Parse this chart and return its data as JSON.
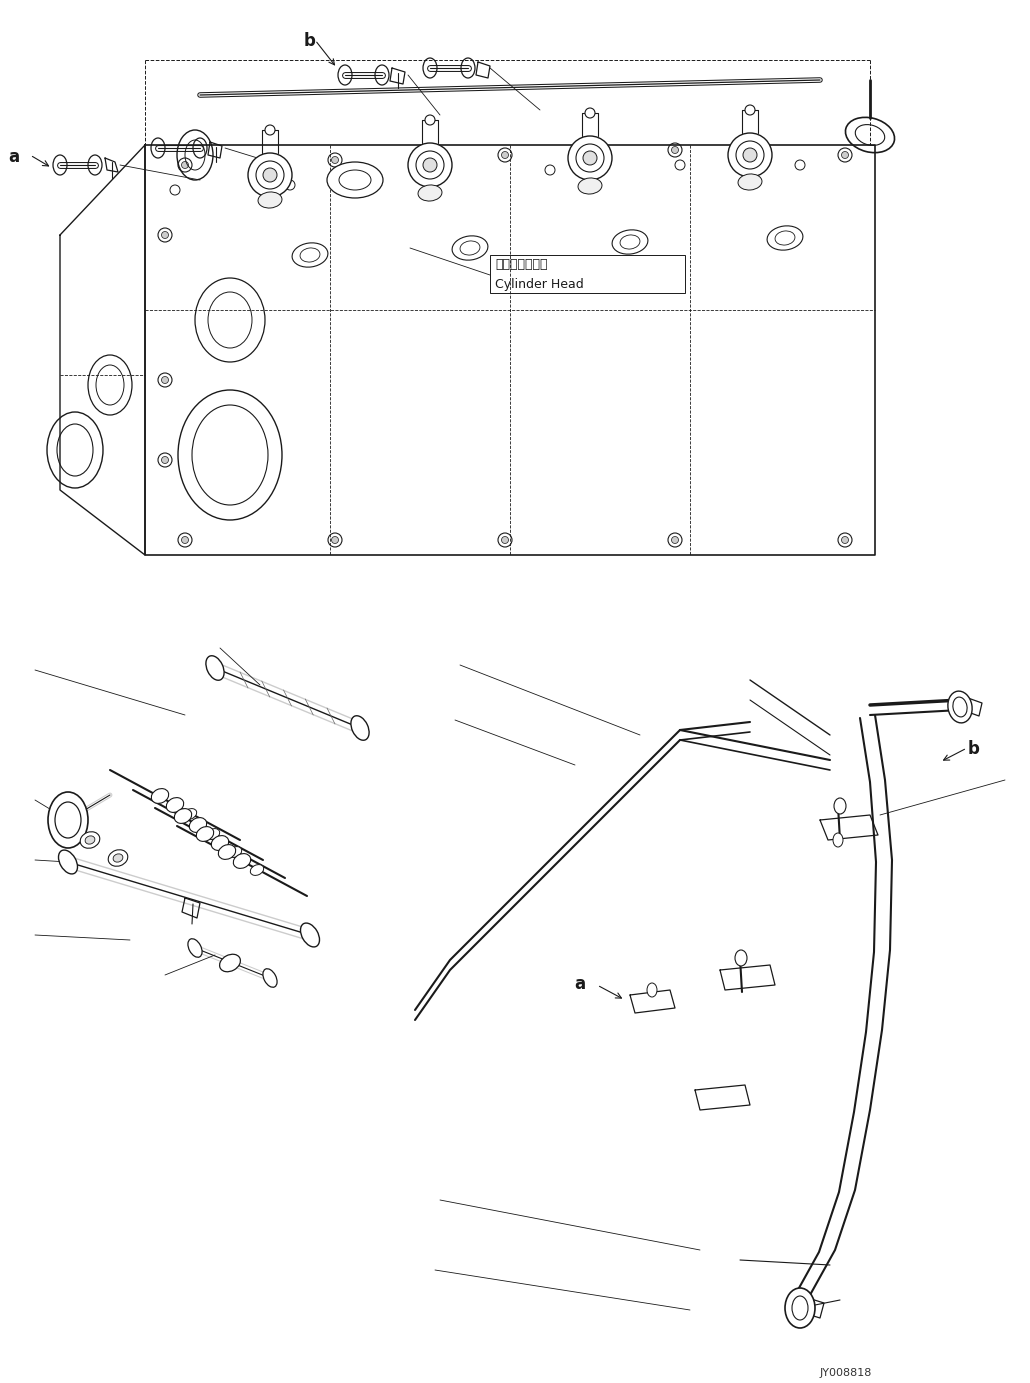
{
  "bg_color": "#ffffff",
  "line_color": "#1a1a1a",
  "cylinder_head_jp": "シリンダヘッド",
  "cylinder_head_en": "Cylinder Head",
  "part_number": "JY008818",
  "fig_width": 10.3,
  "fig_height": 13.83,
  "dpi": 100
}
